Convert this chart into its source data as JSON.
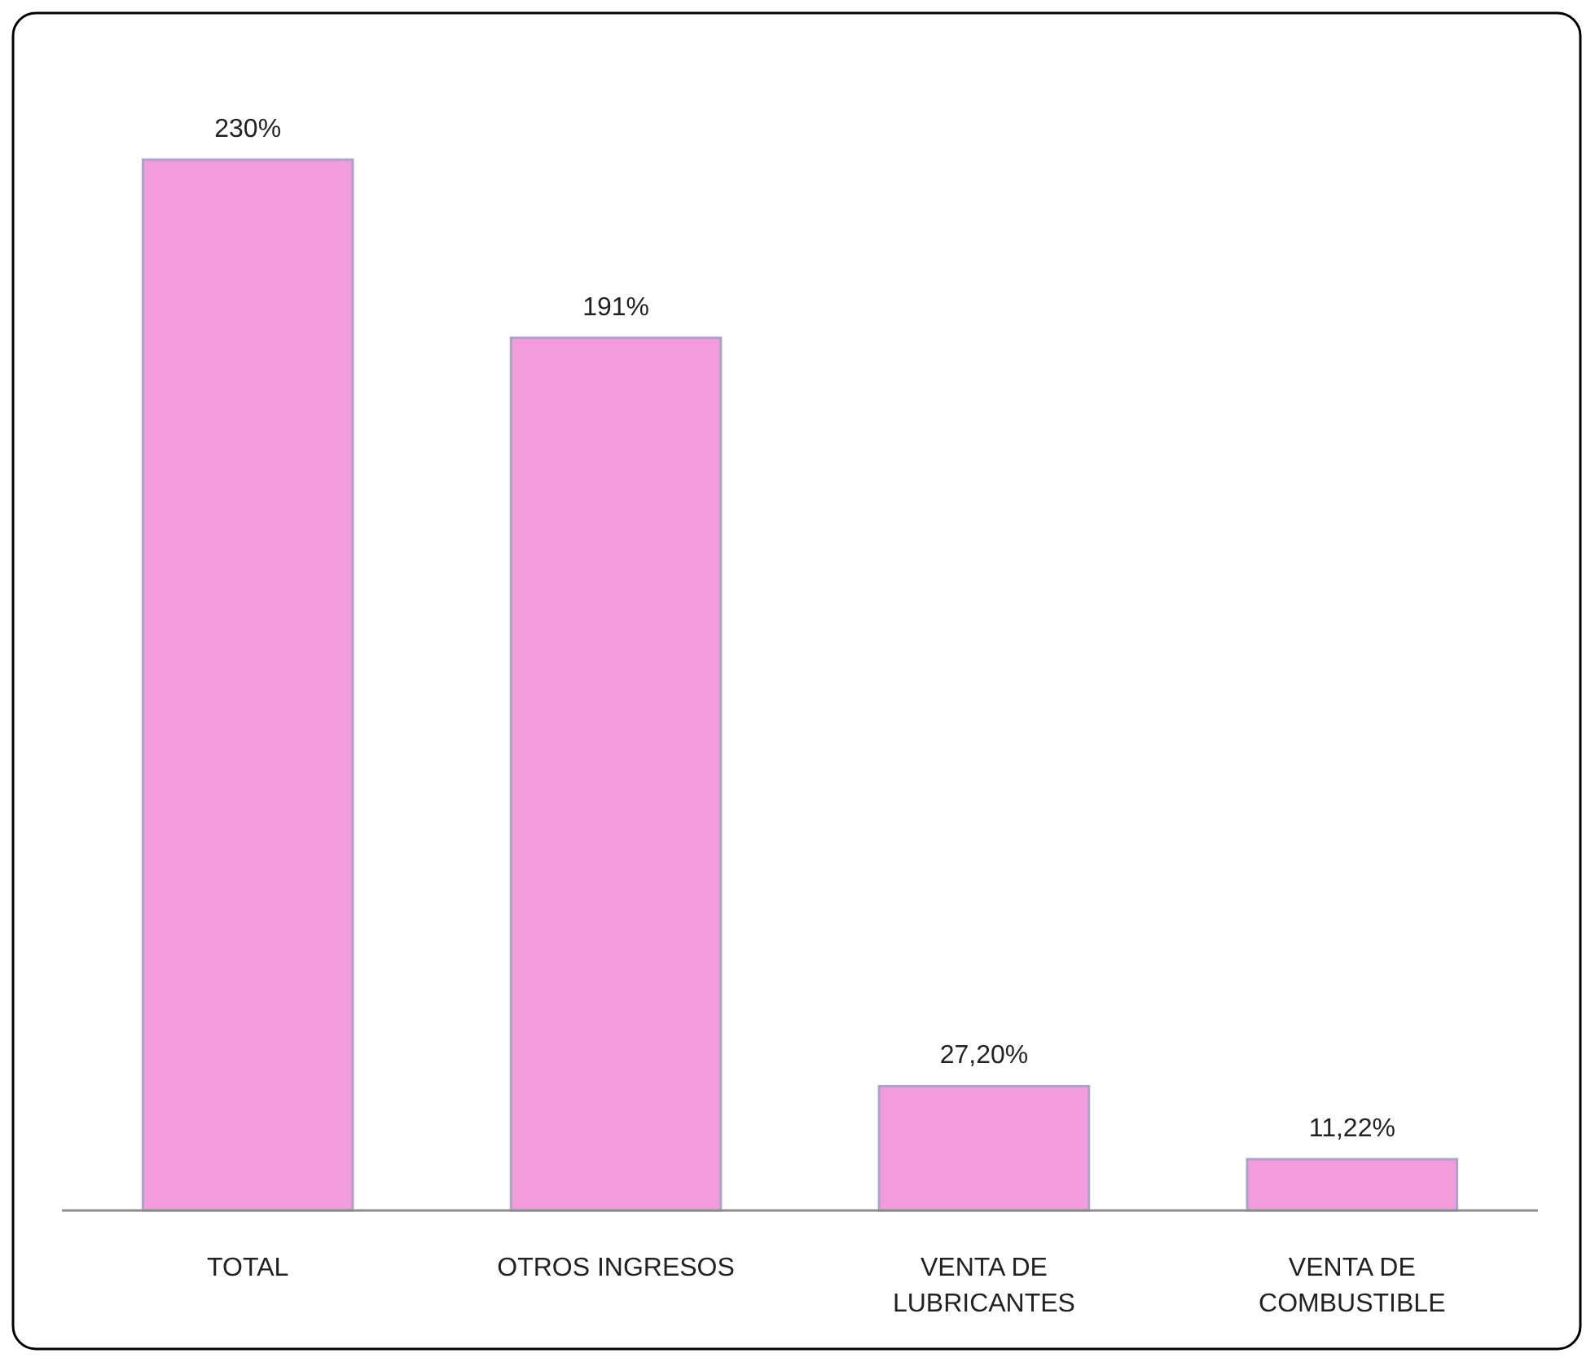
{
  "chart_data": {
    "type": "bar",
    "categories": [
      "TOTAL",
      "OTROS INGRESOS",
      "VENTA DE LUBRICANTES",
      "VENTA DE COMBUSTIBLE"
    ],
    "values": [
      230,
      191,
      27.2,
      11.22
    ],
    "value_labels": [
      "230%",
      "191%",
      "27,20%",
      "11,22%"
    ],
    "color": "#f39cdb"
  }
}
